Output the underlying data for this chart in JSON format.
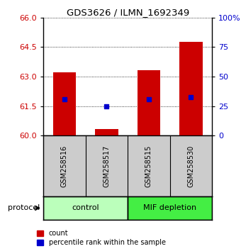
{
  "title": "GDS3626 / ILMN_1692349",
  "samples": [
    "GSM258516",
    "GSM258517",
    "GSM258515",
    "GSM258530"
  ],
  "bar_values": [
    63.2,
    60.32,
    63.32,
    64.78
  ],
  "blue_dot_values": [
    61.85,
    61.47,
    61.85,
    61.97
  ],
  "bar_bottom": 60.0,
  "ylim": [
    60,
    66
  ],
  "yticks_left": [
    60,
    61.5,
    63,
    64.5,
    66
  ],
  "yticks_right": [
    0,
    25,
    50,
    75,
    100
  ],
  "bar_color": "#cc0000",
  "dot_color": "#0000cc",
  "bar_width": 0.55,
  "groups": [
    {
      "label": "control",
      "indices": [
        0,
        1
      ],
      "color": "#bbffbb"
    },
    {
      "label": "MIF depletion",
      "indices": [
        2,
        3
      ],
      "color": "#44ee44"
    }
  ],
  "protocol_label": "protocol",
  "legend_red": "count",
  "legend_blue": "percentile rank within the sample",
  "bg_color": "#ffffff",
  "tick_label_color_left": "#cc0000",
  "tick_label_color_right": "#0000cc",
  "label_bg": "#cccccc"
}
